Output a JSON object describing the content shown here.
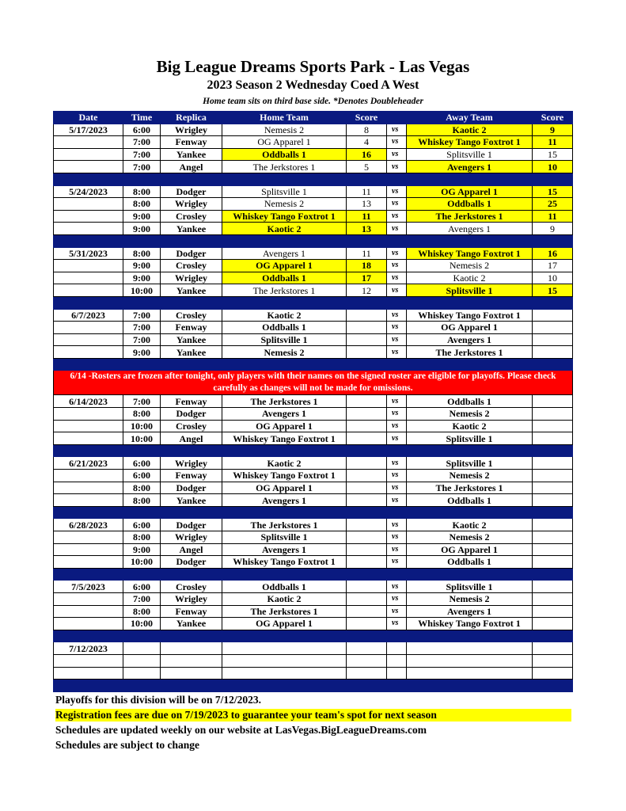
{
  "title": "Big League Dreams Sports Park - Las Vegas",
  "subtitle": "2023 Season 2 Wednesday Coed A West",
  "note": "Home team sits on third base side.  *Denotes Doubleheader",
  "columns": [
    "Date",
    "Time",
    "Replica",
    "Home Team",
    "Score",
    "",
    "Away Team",
    "Score"
  ],
  "vs_label": "vs",
  "highlight_color": "#ffff00",
  "header_color": "#0a1a80",
  "banner": "6/14 -Rosters are frozen after tonight, only players with their names on the signed roster are eligible for playoffs. Please check carefully as changes will not be made for omissions.",
  "banner_after_week": 3,
  "weeks": [
    {
      "date": "5/17/2023",
      "games": [
        {
          "time": "6:00",
          "field": "Wrigley",
          "home": "Nemesis 2",
          "hs": "8",
          "away": "Kaotic 2",
          "as": "9",
          "winner": "away"
        },
        {
          "time": "7:00",
          "field": "Fenway",
          "home": "OG Apparel 1",
          "hs": "4",
          "away": "Whiskey Tango Foxtrot 1",
          "as": "11",
          "winner": "away"
        },
        {
          "time": "7:00",
          "field": "Yankee",
          "home": "Oddballs 1",
          "hs": "16",
          "away": "Splitsville 1",
          "as": "15",
          "winner": "home"
        },
        {
          "time": "7:00",
          "field": "Angel",
          "home": "The Jerkstores 1",
          "hs": "5",
          "away": "Avengers 1",
          "as": "10",
          "winner": "away"
        }
      ]
    },
    {
      "date": "5/24/2023",
      "games": [
        {
          "time": "8:00",
          "field": "Dodger",
          "home": "Splitsville 1",
          "hs": "11",
          "away": "OG Apparel 1",
          "as": "15",
          "winner": "away"
        },
        {
          "time": "8:00",
          "field": "Wrigley",
          "home": "Nemesis 2",
          "hs": "13",
          "away": "Oddballs 1",
          "as": "25",
          "winner": "away"
        },
        {
          "time": "9:00",
          "field": "Crosley",
          "home": "Whiskey Tango Foxtrot 1",
          "hs": "11",
          "away": "The Jerkstores 1",
          "as": "11",
          "winner": "both"
        },
        {
          "time": "9:00",
          "field": "Yankee",
          "home": "Kaotic 2",
          "hs": "13",
          "away": "Avengers 1",
          "as": "9",
          "winner": "home"
        }
      ]
    },
    {
      "date": "5/31/2023",
      "games": [
        {
          "time": "8:00",
          "field": "Dodger",
          "home": "Avengers 1",
          "hs": "11",
          "away": "Whiskey Tango Foxtrot 1",
          "as": "16",
          "winner": "away"
        },
        {
          "time": "9:00",
          "field": "Crosley",
          "home": "OG Apparel 1",
          "hs": "18",
          "away": "Nemesis 2",
          "as": "17",
          "winner": "home"
        },
        {
          "time": "9:00",
          "field": "Wrigley",
          "home": "Oddballs 1",
          "hs": "17",
          "away": "Kaotic 2",
          "as": "10",
          "winner": "home"
        },
        {
          "time": "10:00",
          "field": "Yankee",
          "home": "The Jerkstores 1",
          "hs": "12",
          "away": "Splitsville 1",
          "as": "15",
          "winner": "away"
        }
      ]
    },
    {
      "date": "6/7/2023",
      "games": [
        {
          "time": "7:00",
          "field": "Crosley",
          "home": "Kaotic 2",
          "hs": "",
          "away": "Whiskey Tango Foxtrot 1",
          "as": ""
        },
        {
          "time": "7:00",
          "field": "Fenway",
          "home": "Oddballs 1",
          "hs": "",
          "away": "OG Apparel 1",
          "as": ""
        },
        {
          "time": "7:00",
          "field": "Yankee",
          "home": "Splitsville 1",
          "hs": "",
          "away": "Avengers 1",
          "as": ""
        },
        {
          "time": "9:00",
          "field": "Yankee",
          "home": "Nemesis 2",
          "hs": "",
          "away": "The Jerkstores 1",
          "as": ""
        }
      ]
    },
    {
      "date": "6/14/2023",
      "games": [
        {
          "time": "7:00",
          "field": "Fenway",
          "home": "The Jerkstores 1",
          "hs": "",
          "away": "Oddballs 1",
          "as": ""
        },
        {
          "time": "8:00",
          "field": "Dodger",
          "home": "Avengers 1",
          "hs": "",
          "away": "Nemesis 2",
          "as": ""
        },
        {
          "time": "10:00",
          "field": "Crosley",
          "home": "OG Apparel 1",
          "hs": "",
          "away": "Kaotic 2",
          "as": ""
        },
        {
          "time": "10:00",
          "field": "Angel",
          "home": "Whiskey Tango Foxtrot 1",
          "hs": "",
          "away": "Splitsville 1",
          "as": ""
        }
      ]
    },
    {
      "date": "6/21/2023",
      "games": [
        {
          "time": "6:00",
          "field": "Wrigley",
          "home": "Kaotic 2",
          "hs": "",
          "away": "Splitsville 1",
          "as": ""
        },
        {
          "time": "6:00",
          "field": "Fenway",
          "home": "Whiskey Tango Foxtrot 1",
          "hs": "",
          "away": "Nemesis 2",
          "as": ""
        },
        {
          "time": "8:00",
          "field": "Dodger",
          "home": "OG Apparel 1",
          "hs": "",
          "away": "The Jerkstores 1",
          "as": ""
        },
        {
          "time": "8:00",
          "field": "Yankee",
          "home": "Avengers 1",
          "hs": "",
          "away": "Oddballs 1",
          "as": ""
        }
      ]
    },
    {
      "date": "6/28/2023",
      "games": [
        {
          "time": "6:00",
          "field": "Dodger",
          "home": "The Jerkstores 1",
          "hs": "",
          "away": "Kaotic 2",
          "as": ""
        },
        {
          "time": "8:00",
          "field": "Wrigley",
          "home": "Splitsville 1",
          "hs": "",
          "away": "Nemesis 2",
          "as": ""
        },
        {
          "time": "9:00",
          "field": "Angel",
          "home": "Avengers 1",
          "hs": "",
          "away": "OG Apparel 1",
          "as": ""
        },
        {
          "time": "10:00",
          "field": "Dodger",
          "home": "Whiskey Tango Foxtrot 1",
          "hs": "",
          "away": "Oddballs 1",
          "as": ""
        }
      ]
    },
    {
      "date": "7/5/2023",
      "games": [
        {
          "time": "6:00",
          "field": "Crosley",
          "home": "Oddballs 1",
          "hs": "",
          "away": "Splitsville 1",
          "as": ""
        },
        {
          "time": "7:00",
          "field": "Wrigley",
          "home": "Kaotic 2",
          "hs": "",
          "away": "Nemesis 2",
          "as": ""
        },
        {
          "time": "8:00",
          "field": "Fenway",
          "home": "The Jerkstores 1",
          "hs": "",
          "away": "Avengers 1",
          "as": ""
        },
        {
          "time": "10:00",
          "field": "Yankee",
          "home": "OG Apparel 1",
          "hs": "",
          "away": "Whiskey Tango Foxtrot 1",
          "as": ""
        }
      ]
    },
    {
      "date": "7/12/2023",
      "games": [
        {
          "time": "",
          "field": "",
          "home": "",
          "hs": "",
          "away": "",
          "as": "",
          "novs": true
        },
        {
          "time": "",
          "field": "",
          "home": "",
          "hs": "",
          "away": "",
          "as": "",
          "novs": true
        },
        {
          "time": "",
          "field": "",
          "home": "",
          "hs": "",
          "away": "",
          "as": "",
          "novs": true
        }
      ]
    }
  ],
  "footer": [
    "Playoffs for this division will be on 7/12/2023.",
    "Registration fees are due on 7/19/2023 to guarantee your team's spot for next season",
    "Schedules are updated weekly on our website at LasVegas.BigLeagueDreams.com",
    "Schedules are subject to change"
  ]
}
